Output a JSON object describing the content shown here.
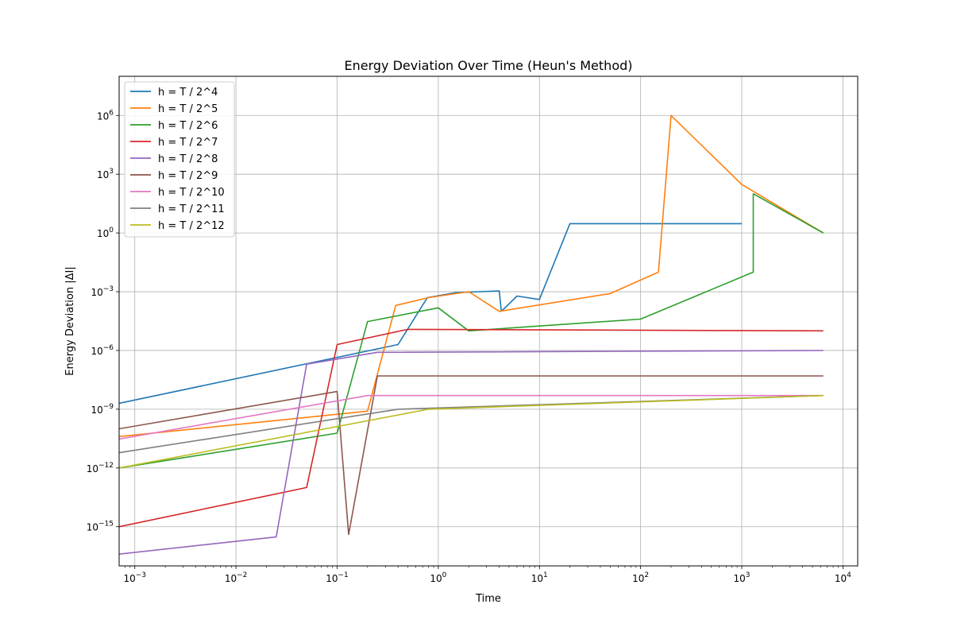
{
  "chart_data": {
    "type": "line",
    "title": "Energy Deviation Over Time (Heun's Method)",
    "xlabel": "Time",
    "ylabel": "Energy Deviation |ΔI|",
    "xscale": "log",
    "yscale": "log",
    "xlim": [
      0.0007,
      14000
    ],
    "ylim": [
      1e-17,
      100000000.0
    ],
    "xticks": [
      {
        "value": 0.001,
        "base": "10",
        "exp": "−3"
      },
      {
        "value": 0.01,
        "base": "10",
        "exp": "−2"
      },
      {
        "value": 0.1,
        "base": "10",
        "exp": "−1"
      },
      {
        "value": 1,
        "base": "10",
        "exp": "0"
      },
      {
        "value": 10,
        "base": "10",
        "exp": "1"
      },
      {
        "value": 100,
        "base": "10",
        "exp": "2"
      },
      {
        "value": 1000,
        "base": "10",
        "exp": "3"
      },
      {
        "value": 10000,
        "base": "10",
        "exp": "4"
      }
    ],
    "yticks": [
      {
        "value": 1e-15,
        "base": "10",
        "exp": "−15"
      },
      {
        "value": 1e-12,
        "base": "10",
        "exp": "−12"
      },
      {
        "value": 1e-09,
        "base": "10",
        "exp": "−9"
      },
      {
        "value": 1e-06,
        "base": "10",
        "exp": "−6"
      },
      {
        "value": 0.001,
        "base": "10",
        "exp": "−3"
      },
      {
        "value": 1,
        "base": "10",
        "exp": "0"
      },
      {
        "value": 1000,
        "base": "10",
        "exp": "3"
      },
      {
        "value": 1000000,
        "base": "10",
        "exp": "6"
      }
    ],
    "grid": true,
    "legend_position": "top-left",
    "series": [
      {
        "name": "h = T / 2^4",
        "color": "#1f77b4",
        "points": [
          [
            0.0007,
            2e-09
          ],
          [
            0.4,
            2e-06
          ],
          [
            0.78,
            0.0005
          ],
          [
            1.5,
            0.0009
          ],
          [
            4,
            0.0011
          ],
          [
            4.2,
            0.0001
          ],
          [
            6,
            0.0006
          ],
          [
            10,
            0.0004
          ],
          [
            20,
            3
          ],
          [
            100,
            3
          ],
          [
            1000,
            3
          ]
        ]
      },
      {
        "name": "h = T / 2^5",
        "color": "#ff7f0e",
        "points": [
          [
            0.0007,
            4e-11
          ],
          [
            0.2,
            8e-10
          ],
          [
            0.38,
            0.0002
          ],
          [
            0.8,
            0.0005
          ],
          [
            2,
            0.001
          ],
          [
            4,
            0.0001
          ],
          [
            50,
            0.0008
          ],
          [
            150,
            0.01
          ],
          [
            200,
            1000000.0
          ],
          [
            1000,
            300.0
          ],
          [
            6400,
            1
          ]
        ]
      },
      {
        "name": "h = T / 2^6",
        "color": "#2ca02c",
        "points": [
          [
            0.0007,
            1e-12
          ],
          [
            0.1,
            6e-11
          ],
          [
            0.2,
            3e-05
          ],
          [
            1,
            0.00015
          ],
          [
            2,
            1e-05
          ],
          [
            100,
            4e-05
          ],
          [
            1300,
            0.01
          ],
          [
            1300,
            100.0
          ],
          [
            6400,
            1
          ]
        ]
      },
      {
        "name": "h = T / 2^7",
        "color": "#d62728",
        "points": [
          [
            0.0007,
            1e-15
          ],
          [
            0.05,
            1e-13
          ],
          [
            0.1,
            2e-06
          ],
          [
            0.5,
            1.2e-05
          ],
          [
            6400,
            1e-05
          ]
        ]
      },
      {
        "name": "h = T / 2^8",
        "color": "#9467bd",
        "points": [
          [
            0.0007,
            4e-17
          ],
          [
            0.025,
            3e-16
          ],
          [
            0.05,
            2e-07
          ],
          [
            0.25,
            8e-07
          ],
          [
            6400,
            1e-06
          ]
        ]
      },
      {
        "name": "h = T / 2^9",
        "color": "#8c564b",
        "points": [
          [
            0.0007,
            1e-10
          ],
          [
            0.1,
            8e-09
          ],
          [
            0.13,
            4e-16
          ],
          [
            0.25,
            5e-08
          ],
          [
            6400,
            5e-08
          ]
        ]
      },
      {
        "name": "h = T / 2^10",
        "color": "#e377c2",
        "points": [
          [
            0.0007,
            3e-11
          ],
          [
            0.2,
            5e-09
          ],
          [
            6400,
            5e-09
          ]
        ]
      },
      {
        "name": "h = T / 2^11",
        "color": "#7f7f7f",
        "points": [
          [
            0.0007,
            6e-12
          ],
          [
            0.4,
            1e-09
          ],
          [
            6400,
            5e-09
          ]
        ]
      },
      {
        "name": "h = T / 2^12",
        "color": "#bcbd22",
        "points": [
          [
            0.0007,
            1e-12
          ],
          [
            0.8,
            1e-09
          ],
          [
            6400,
            5e-09
          ]
        ]
      }
    ]
  }
}
